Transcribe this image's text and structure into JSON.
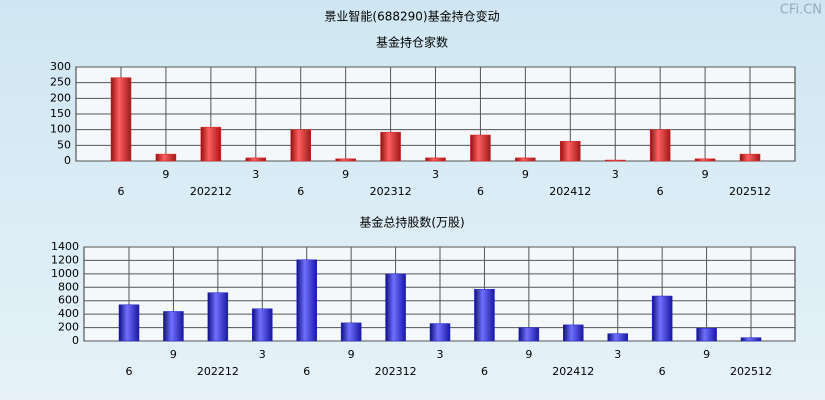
{
  "title": "景业智能(688290)基金持仓变动",
  "watermark": "CFi.CN",
  "chart_data": [
    {
      "type": "bar",
      "title": "基金持仓家数",
      "categories": [
        "6",
        "9",
        "202212",
        "3",
        "6",
        "9",
        "202312",
        "3",
        "6",
        "9",
        "202412",
        "3",
        "6",
        "9",
        "202512"
      ],
      "values": [
        266,
        22,
        108,
        10,
        100,
        7,
        92,
        10,
        83,
        10,
        63,
        3,
        100,
        7,
        22
      ],
      "color": "#e02020",
      "ylim": [
        0,
        300
      ],
      "yticks": [
        0,
        50,
        100,
        150,
        200,
        250,
        300
      ],
      "grid": true
    },
    {
      "type": "bar",
      "title": "基金总持股数(万股)",
      "categories": [
        "6",
        "9",
        "202212",
        "3",
        "6",
        "9",
        "202312",
        "3",
        "6",
        "9",
        "202412",
        "3",
        "6",
        "9",
        "202512"
      ],
      "values": [
        540,
        440,
        720,
        480,
        1210,
        270,
        1000,
        260,
        770,
        200,
        240,
        110,
        670,
        190,
        50
      ],
      "color": "#2020d0",
      "ylim": [
        0,
        1400
      ],
      "yticks": [
        0,
        200,
        400,
        600,
        800,
        1000,
        1200,
        1400
      ],
      "grid": true
    }
  ]
}
